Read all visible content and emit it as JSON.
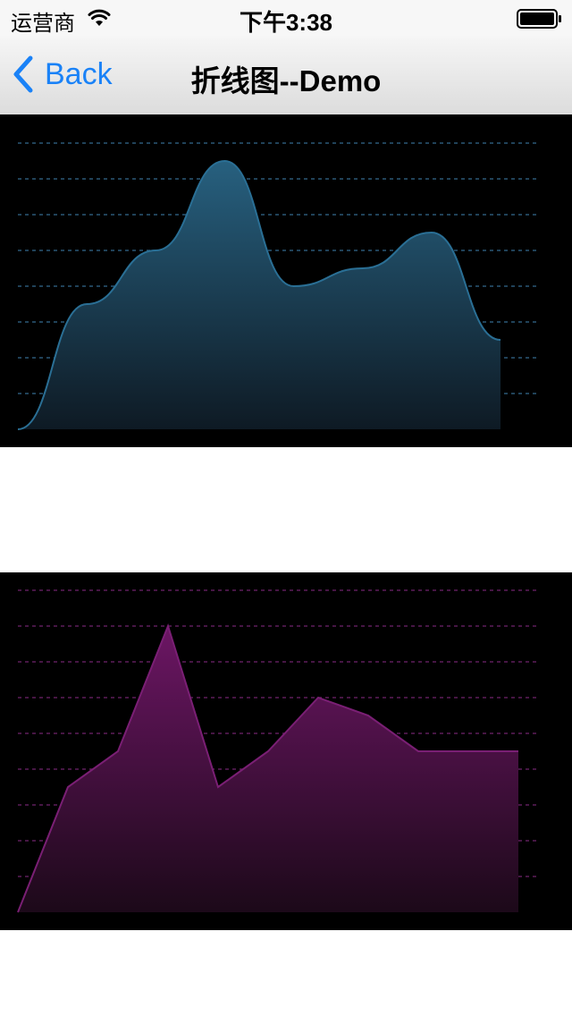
{
  "status_bar": {
    "carrier": "运营商",
    "time": "下午3:38",
    "wifi_icon": "wifi-icon",
    "battery_icon": "battery-full-icon"
  },
  "nav": {
    "back_label": "Back",
    "back_icon": "chevron-left-icon",
    "title": "折线图--Demo"
  },
  "colors": {
    "accent": "#1a82f7",
    "chart1_line": "#2a6f95",
    "chart1_fill_top": "#27607f",
    "chart1_fill_bottom": "#0e1a24",
    "chart1_grid": "#2a5877",
    "chart2_line": "#7a1f74",
    "chart2_fill_top": "#6c1664",
    "chart2_fill_bottom": "#1c0919",
    "chart2_grid": "#5e1e5a",
    "panel_bg": "#000000"
  },
  "chart_data": [
    {
      "type": "area",
      "smooth": true,
      "x": [
        0,
        1,
        2,
        3,
        4,
        5,
        6,
        7
      ],
      "values": [
        0,
        35,
        50,
        75,
        40,
        45,
        55,
        25
      ],
      "ylim": [
        0,
        75
      ],
      "grid": true,
      "xlabel": "",
      "ylabel": ""
    },
    {
      "type": "area",
      "smooth": false,
      "x": [
        0,
        1,
        2,
        3,
        4,
        5,
        6,
        7,
        8,
        9,
        10
      ],
      "values": [
        0,
        35,
        45,
        80,
        35,
        45,
        60,
        55,
        45,
        45,
        45
      ],
      "ylim": [
        0,
        90
      ],
      "grid": true,
      "xlabel": "",
      "ylabel": ""
    }
  ]
}
